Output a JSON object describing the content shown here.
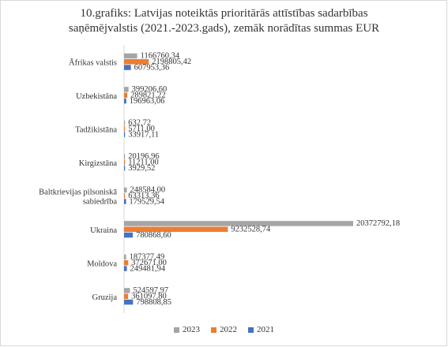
{
  "chart_data": {
    "type": "bar",
    "orientation": "horizontal",
    "title_lines": [
      "10.grafiks: Latvijas noteiktās prioritārās attīstības sadarbības",
      "saņēmējvalstis (2021.-2023.gads), zemāk norādītas summas EUR"
    ],
    "categories": [
      "Āfrikas valstis",
      "Uzbekistāna",
      "Tadžikistāna",
      "Kirgizstāna",
      "Baltkrievijas pilsoniskā sabiedrība",
      "Ukraina",
      "Moldova",
      "Gruzija"
    ],
    "series": [
      {
        "name": "2023",
        "color": "#a5a5a5",
        "values": [
          1166760.34,
          399206.6,
          632.72,
          20196.96,
          248584.0,
          20372792.18,
          187377.49,
          524597.97
        ],
        "labels": [
          "1166760,34",
          "399206,60",
          "632,72",
          "20196,96",
          "248584,00",
          "20372792,18",
          "187377,49",
          "524597,97"
        ]
      },
      {
        "name": "2022",
        "color": "#ed7d31",
        "values": [
          2198805.42,
          289821.22,
          5711.0,
          11211.0,
          63313.36,
          9232528.74,
          372671.0,
          361097.8
        ],
        "labels": [
          "2198805,42",
          "289821,22",
          "5711,00",
          "11211,00",
          "63313,36",
          "9232528,74",
          "372671,00",
          "361097,80"
        ]
      },
      {
        "name": "2021",
        "color": "#4472c4",
        "values": [
          607953.36,
          196963.06,
          33917.11,
          3929.52,
          179529.54,
          780868.6,
          249481.94,
          798808.85
        ],
        "labels": [
          "607953,36",
          "196963,06",
          "33917,11",
          "3929,52",
          "179529,54",
          "780868,60",
          "249481,94",
          "798808,85"
        ]
      }
    ],
    "xlim": [
      0,
      20372792.18
    ],
    "grid": false,
    "legend_position": "bottom"
  }
}
